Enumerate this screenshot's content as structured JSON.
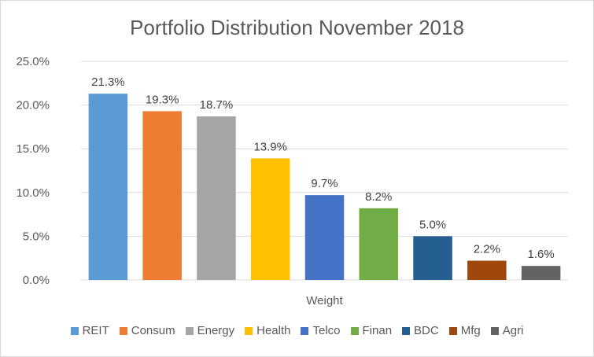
{
  "chart_data": {
    "type": "bar",
    "title": "Portfolio Distribution November 2018",
    "xlabel": "Weight",
    "ylabel": "",
    "ylim": [
      0,
      25
    ],
    "yticks": [
      "0.0%",
      "5.0%",
      "10.0%",
      "15.0%",
      "20.0%",
      "25.0%"
    ],
    "grid": true,
    "legend_position": "bottom",
    "categories": [
      "REIT",
      "Consum",
      "Energy",
      "Health",
      "Telco",
      "Finan",
      "BDC",
      "Mfg",
      "Agri"
    ],
    "values": [
      21.3,
      19.3,
      18.7,
      13.9,
      9.7,
      8.2,
      5.0,
      2.2,
      1.6
    ],
    "data_labels": [
      "21.3%",
      "19.3%",
      "18.7%",
      "13.9%",
      "9.7%",
      "8.2%",
      "5.0%",
      "2.2%",
      "1.6%"
    ],
    "colors": [
      "#5b9bd5",
      "#ed7d31",
      "#a5a5a5",
      "#ffc000",
      "#4472c4",
      "#70ad47",
      "#255e91",
      "#9e480e",
      "#636363"
    ]
  }
}
